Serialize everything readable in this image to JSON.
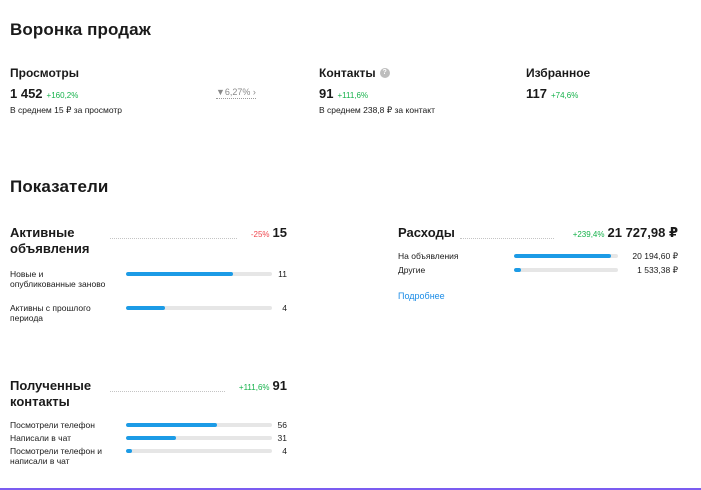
{
  "funnel": {
    "title": "Воронка продаж",
    "views": {
      "label": "Просмотры",
      "value": "1 452",
      "delta": "+160,2%",
      "sub": "В среднем 15 ₽ за просмотр"
    },
    "conversion": "▼6,27% ›",
    "contacts": {
      "label": "Контакты",
      "help": "?",
      "value": "91",
      "delta": "+111,6%",
      "sub": "В среднем 238,8 ₽ за контакт"
    },
    "favorites": {
      "label": "Избранное",
      "value": "117",
      "delta": "+74,6%"
    }
  },
  "metrics": {
    "title": "Показатели",
    "active": {
      "title": "Активные объявления",
      "delta": "-25%",
      "value": "15",
      "rows": [
        {
          "label": "Новые и опубликованные заново",
          "value": "11",
          "fraction": 0.73
        },
        {
          "label": "Активны с прошлого периода",
          "value": "4",
          "fraction": 0.27
        }
      ]
    },
    "contacts": {
      "title": "Полученные контакты",
      "delta": "+111,6%",
      "value": "91",
      "rows": [
        {
          "label": "Посмотрели телефон",
          "value": "56",
          "fraction": 0.62
        },
        {
          "label": "Написали в чат",
          "value": "31",
          "fraction": 0.34
        },
        {
          "label": "Посмотрели телефон и написали в чат",
          "value": "4",
          "fraction": 0.04
        }
      ]
    },
    "expenses": {
      "title": "Расходы",
      "delta": "+239,4%",
      "value": "21 727,98 ₽",
      "rows": [
        {
          "label": "На объявления",
          "value": "20 194,60 ₽",
          "fraction": 0.93
        },
        {
          "label": "Другие",
          "value": "1 533,38 ₽",
          "fraction": 0.07
        }
      ],
      "more_link": "Подробнее"
    }
  },
  "colors": {
    "accent": "#1c9be6",
    "positive": "#16b24b",
    "negative": "#f0484f"
  }
}
